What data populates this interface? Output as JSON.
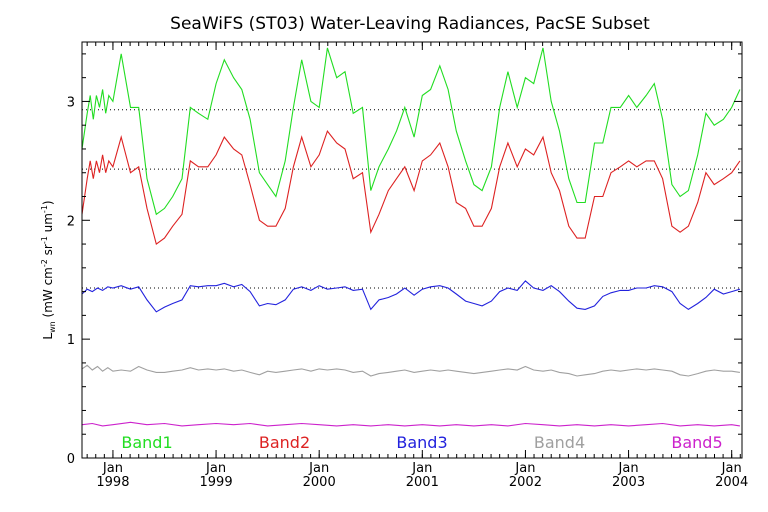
{
  "chart_data": {
    "type": "line",
    "title": "SeaWiFS (ST03) Water-Leaving Radiances, PacSE Subset",
    "ylabel": {
      "main": "L",
      "sub": "wn",
      "units_open": " (mW cm",
      "exp1": "-2",
      "mid1": " sr",
      "exp2": "-1",
      "mid2": " um",
      "exp3": "-1",
      "close": ")"
    },
    "x_range": [
      1997.7,
      2004.1
    ],
    "y_range": [
      0,
      3.5
    ],
    "y_ticks": [
      {
        "value": 0,
        "label": "0"
      },
      {
        "value": 1,
        "label": "1"
      },
      {
        "value": 2,
        "label": "2"
      },
      {
        "value": 3,
        "label": "3"
      }
    ],
    "x_ticks": [
      {
        "value": 1998.0,
        "month": "Jan",
        "year": "1998"
      },
      {
        "value": 1999.0,
        "month": "Jan",
        "year": "1999"
      },
      {
        "value": 2000.0,
        "month": "Jan",
        "year": "2000"
      },
      {
        "value": 2001.0,
        "month": "Jan",
        "year": "2001"
      },
      {
        "value": 2002.0,
        "month": "Jan",
        "year": "2002"
      },
      {
        "value": 2003.0,
        "month": "Jan",
        "year": "2003"
      },
      {
        "value": 2004.0,
        "month": "Jan",
        "year": "2004"
      }
    ],
    "reference_lines": [
      2.93,
      2.43,
      1.43
    ],
    "series": [
      {
        "name": "Band1",
        "color": "#22dd22",
        "x": [
          1997.7,
          1997.75,
          1997.78,
          1997.81,
          1997.84,
          1997.87,
          1997.9,
          1997.93,
          1997.96,
          1998.0,
          1998.08,
          1998.17,
          1998.25,
          1998.33,
          1998.42,
          1998.5,
          1998.58,
          1998.67,
          1998.75,
          1998.83,
          1998.92,
          1999.0,
          1999.08,
          1999.17,
          1999.25,
          1999.33,
          1999.42,
          1999.5,
          1999.58,
          1999.67,
          1999.75,
          1999.83,
          1999.92,
          2000.0,
          2000.08,
          2000.17,
          2000.25,
          2000.33,
          2000.42,
          2000.5,
          2000.58,
          2000.67,
          2000.75,
          2000.83,
          2000.92,
          2001.0,
          2001.08,
          2001.17,
          2001.25,
          2001.33,
          2001.42,
          2001.5,
          2001.58,
          2001.67,
          2001.75,
          2001.83,
          2001.92,
          2002.0,
          2002.08,
          2002.17,
          2002.25,
          2002.33,
          2002.42,
          2002.5,
          2002.58,
          2002.67,
          2002.75,
          2002.83,
          2002.92,
          2003.0,
          2003.08,
          2003.17,
          2003.25,
          2003.33,
          2003.42,
          2003.5,
          2003.58,
          2003.67,
          2003.75,
          2003.83,
          2003.92,
          2004.0,
          2004.08
        ],
        "y": [
          2.6,
          2.9,
          3.05,
          2.85,
          3.05,
          2.95,
          3.1,
          2.9,
          3.05,
          3.0,
          3.4,
          2.95,
          2.95,
          2.35,
          2.05,
          2.1,
          2.2,
          2.35,
          2.95,
          2.9,
          2.85,
          3.15,
          3.35,
          3.2,
          3.1,
          2.85,
          2.4,
          2.3,
          2.2,
          2.5,
          2.95,
          3.35,
          3.0,
          2.95,
          3.45,
          3.2,
          3.25,
          2.9,
          2.95,
          2.25,
          2.45,
          2.6,
          2.75,
          2.95,
          2.7,
          3.05,
          3.1,
          3.3,
          3.1,
          2.75,
          2.5,
          2.3,
          2.25,
          2.45,
          2.95,
          3.25,
          2.95,
          3.2,
          3.15,
          3.45,
          3.0,
          2.75,
          2.35,
          2.15,
          2.15,
          2.65,
          2.65,
          2.95,
          2.95,
          3.05,
          2.95,
          3.05,
          3.15,
          2.85,
          2.3,
          2.2,
          2.25,
          2.55,
          2.9,
          2.8,
          2.85,
          2.95,
          3.1
        ]
      },
      {
        "name": "Band2",
        "color": "#dd2222",
        "x": [
          1997.7,
          1997.75,
          1997.78,
          1997.81,
          1997.84,
          1997.87,
          1997.9,
          1997.93,
          1997.96,
          1998.0,
          1998.08,
          1998.17,
          1998.25,
          1998.33,
          1998.42,
          1998.5,
          1998.58,
          1998.67,
          1998.75,
          1998.83,
          1998.92,
          1999.0,
          1999.08,
          1999.17,
          1999.25,
          1999.33,
          1999.42,
          1999.5,
          1999.58,
          1999.67,
          1999.75,
          1999.83,
          1999.92,
          2000.0,
          2000.08,
          2000.17,
          2000.25,
          2000.33,
          2000.42,
          2000.5,
          2000.58,
          2000.67,
          2000.75,
          2000.83,
          2000.92,
          2001.0,
          2001.08,
          2001.17,
          2001.25,
          2001.33,
          2001.42,
          2001.5,
          2001.58,
          2001.67,
          2001.75,
          2001.83,
          2001.92,
          2002.0,
          2002.08,
          2002.17,
          2002.25,
          2002.33,
          2002.42,
          2002.5,
          2002.58,
          2002.67,
          2002.75,
          2002.83,
          2002.92,
          2003.0,
          2003.08,
          2003.17,
          2003.25,
          2003.33,
          2003.42,
          2003.5,
          2003.58,
          2003.67,
          2003.75,
          2003.83,
          2003.92,
          2004.0,
          2004.08
        ],
        "y": [
          2.05,
          2.35,
          2.5,
          2.35,
          2.5,
          2.4,
          2.55,
          2.4,
          2.5,
          2.45,
          2.7,
          2.4,
          2.45,
          2.1,
          1.8,
          1.85,
          1.95,
          2.05,
          2.5,
          2.45,
          2.45,
          2.55,
          2.7,
          2.6,
          2.55,
          2.3,
          2.0,
          1.95,
          1.95,
          2.1,
          2.45,
          2.7,
          2.45,
          2.55,
          2.75,
          2.65,
          2.6,
          2.35,
          2.4,
          1.9,
          2.05,
          2.25,
          2.35,
          2.45,
          2.25,
          2.5,
          2.55,
          2.65,
          2.45,
          2.15,
          2.1,
          1.95,
          1.95,
          2.1,
          2.45,
          2.65,
          2.45,
          2.6,
          2.55,
          2.7,
          2.4,
          2.25,
          1.95,
          1.85,
          1.85,
          2.2,
          2.2,
          2.4,
          2.45,
          2.5,
          2.45,
          2.5,
          2.5,
          2.35,
          1.95,
          1.9,
          1.95,
          2.15,
          2.4,
          2.3,
          2.35,
          2.4,
          2.5
        ]
      },
      {
        "name": "Band3",
        "color": "#2222dd",
        "x": [
          1997.7,
          1997.75,
          1997.8,
          1997.85,
          1997.9,
          1997.95,
          1998.0,
          1998.08,
          1998.17,
          1998.25,
          1998.33,
          1998.42,
          1998.5,
          1998.58,
          1998.67,
          1998.75,
          1998.83,
          1998.92,
          1999.0,
          1999.08,
          1999.17,
          1999.25,
          1999.33,
          1999.42,
          1999.5,
          1999.58,
          1999.67,
          1999.75,
          1999.83,
          1999.92,
          2000.0,
          2000.08,
          2000.17,
          2000.25,
          2000.33,
          2000.42,
          2000.5,
          2000.58,
          2000.67,
          2000.75,
          2000.83,
          2000.92,
          2001.0,
          2001.08,
          2001.17,
          2001.25,
          2001.33,
          2001.42,
          2001.5,
          2001.58,
          2001.67,
          2001.75,
          2001.83,
          2001.92,
          2002.0,
          2002.08,
          2002.17,
          2002.25,
          2002.33,
          2002.42,
          2002.5,
          2002.58,
          2002.67,
          2002.75,
          2002.83,
          2002.92,
          2003.0,
          2003.08,
          2003.17,
          2003.25,
          2003.33,
          2003.42,
          2003.5,
          2003.58,
          2003.67,
          2003.75,
          2003.83,
          2003.92,
          2004.0,
          2004.08
        ],
        "y": [
          1.38,
          1.42,
          1.4,
          1.43,
          1.41,
          1.44,
          1.43,
          1.45,
          1.42,
          1.44,
          1.33,
          1.23,
          1.27,
          1.3,
          1.33,
          1.45,
          1.44,
          1.45,
          1.45,
          1.47,
          1.44,
          1.46,
          1.4,
          1.28,
          1.3,
          1.29,
          1.33,
          1.42,
          1.44,
          1.41,
          1.45,
          1.42,
          1.43,
          1.44,
          1.41,
          1.42,
          1.25,
          1.33,
          1.35,
          1.38,
          1.43,
          1.37,
          1.42,
          1.44,
          1.45,
          1.43,
          1.38,
          1.32,
          1.3,
          1.28,
          1.32,
          1.4,
          1.43,
          1.41,
          1.49,
          1.43,
          1.41,
          1.45,
          1.4,
          1.32,
          1.26,
          1.25,
          1.28,
          1.36,
          1.39,
          1.41,
          1.41,
          1.43,
          1.43,
          1.45,
          1.44,
          1.4,
          1.3,
          1.25,
          1.3,
          1.35,
          1.42,
          1.38,
          1.4,
          1.42
        ]
      },
      {
        "name": "Band4",
        "color": "#a0a0a0",
        "x": [
          1997.7,
          1997.75,
          1997.8,
          1997.85,
          1997.9,
          1997.95,
          1998.0,
          1998.08,
          1998.17,
          1998.25,
          1998.33,
          1998.42,
          1998.5,
          1998.58,
          1998.67,
          1998.75,
          1998.83,
          1998.92,
          1999.0,
          1999.08,
          1999.17,
          1999.25,
          1999.33,
          1999.42,
          1999.5,
          1999.58,
          1999.67,
          1999.75,
          1999.83,
          1999.92,
          2000.0,
          2000.08,
          2000.17,
          2000.25,
          2000.33,
          2000.42,
          2000.5,
          2000.58,
          2000.67,
          2000.75,
          2000.83,
          2000.92,
          2001.0,
          2001.08,
          2001.17,
          2001.25,
          2001.33,
          2001.42,
          2001.5,
          2001.58,
          2001.67,
          2001.75,
          2001.83,
          2001.92,
          2002.0,
          2002.08,
          2002.17,
          2002.25,
          2002.33,
          2002.42,
          2002.5,
          2002.58,
          2002.67,
          2002.75,
          2002.83,
          2002.92,
          2003.0,
          2003.08,
          2003.17,
          2003.25,
          2003.33,
          2003.42,
          2003.5,
          2003.58,
          2003.67,
          2003.75,
          2003.83,
          2003.92,
          2004.0,
          2004.08
        ],
        "y": [
          0.75,
          0.78,
          0.74,
          0.77,
          0.73,
          0.76,
          0.73,
          0.74,
          0.73,
          0.77,
          0.74,
          0.72,
          0.72,
          0.73,
          0.74,
          0.76,
          0.74,
          0.75,
          0.74,
          0.75,
          0.73,
          0.74,
          0.72,
          0.7,
          0.73,
          0.72,
          0.73,
          0.74,
          0.75,
          0.73,
          0.75,
          0.74,
          0.75,
          0.74,
          0.72,
          0.73,
          0.69,
          0.71,
          0.72,
          0.73,
          0.74,
          0.72,
          0.73,
          0.74,
          0.73,
          0.74,
          0.73,
          0.72,
          0.71,
          0.72,
          0.73,
          0.74,
          0.75,
          0.74,
          0.77,
          0.74,
          0.73,
          0.74,
          0.72,
          0.71,
          0.69,
          0.7,
          0.71,
          0.73,
          0.74,
          0.73,
          0.74,
          0.75,
          0.74,
          0.75,
          0.74,
          0.73,
          0.7,
          0.69,
          0.71,
          0.73,
          0.74,
          0.73,
          0.73,
          0.72
        ]
      },
      {
        "name": "Band5",
        "color": "#cc22cc",
        "x": [
          1997.7,
          1997.8,
          1997.9,
          1998.0,
          1998.17,
          1998.33,
          1998.5,
          1998.67,
          1998.83,
          1999.0,
          1999.17,
          1999.33,
          1999.5,
          1999.67,
          1999.83,
          2000.0,
          2000.17,
          2000.33,
          2000.5,
          2000.67,
          2000.83,
          2001.0,
          2001.17,
          2001.33,
          2001.5,
          2001.67,
          2001.83,
          2002.0,
          2002.17,
          2002.33,
          2002.5,
          2002.67,
          2002.83,
          2003.0,
          2003.17,
          2003.33,
          2003.5,
          2003.67,
          2003.83,
          2004.0,
          2004.08
        ],
        "y": [
          0.28,
          0.29,
          0.27,
          0.28,
          0.3,
          0.28,
          0.29,
          0.27,
          0.28,
          0.29,
          0.28,
          0.29,
          0.27,
          0.28,
          0.29,
          0.28,
          0.27,
          0.28,
          0.27,
          0.28,
          0.27,
          0.28,
          0.27,
          0.28,
          0.27,
          0.28,
          0.27,
          0.29,
          0.28,
          0.27,
          0.28,
          0.27,
          0.28,
          0.27,
          0.28,
          0.29,
          0.27,
          0.28,
          0.27,
          0.28,
          0.27
        ]
      }
    ]
  }
}
